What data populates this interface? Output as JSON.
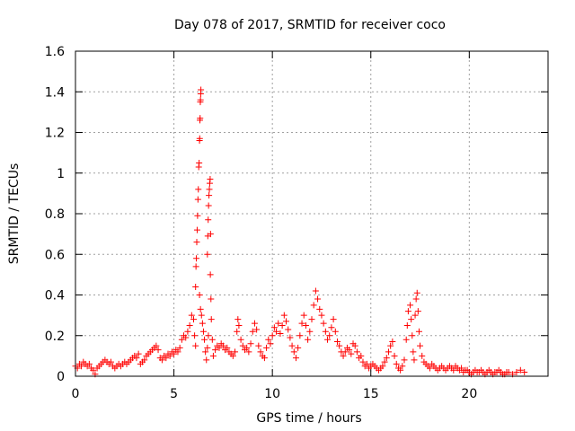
{
  "chart_data": {
    "type": "scatter",
    "title": "Day 078 of 2017, SRMTID for receiver coco",
    "xlabel": "GPS time / hours",
    "ylabel": "SRMTID / TECUs",
    "xlim": [
      0,
      24
    ],
    "ylim": [
      0,
      1.6
    ],
    "xticks": [
      0,
      5,
      10,
      15,
      20
    ],
    "yticks": [
      0,
      0.2,
      0.4,
      0.6,
      0.8,
      1,
      1.2,
      1.4,
      1.6
    ],
    "xtick_labels": [
      "0",
      "5",
      "10",
      "15",
      "20"
    ],
    "ytick_labels": [
      "0",
      "0.2",
      "0.4",
      "0.6",
      "0.8",
      "1",
      "1.2",
      "1.4",
      "1.6"
    ],
    "grid": true,
    "marker": "plus",
    "color": "#ff0000",
    "series": [
      {
        "name": "SRMTID",
        "points": [
          [
            0.0,
            0.05
          ],
          [
            0.1,
            0.04
          ],
          [
            0.2,
            0.06
          ],
          [
            0.3,
            0.05
          ],
          [
            0.4,
            0.07
          ],
          [
            0.5,
            0.06
          ],
          [
            0.6,
            0.05
          ],
          [
            0.7,
            0.06
          ],
          [
            0.8,
            0.04
          ],
          [
            0.9,
            0.03
          ],
          [
            1.0,
            0.01
          ],
          [
            1.1,
            0.04
          ],
          [
            1.2,
            0.05
          ],
          [
            1.3,
            0.06
          ],
          [
            1.4,
            0.07
          ],
          [
            1.5,
            0.08
          ],
          [
            1.6,
            0.07
          ],
          [
            1.7,
            0.06
          ],
          [
            1.8,
            0.07
          ],
          [
            1.9,
            0.05
          ],
          [
            2.0,
            0.04
          ],
          [
            2.1,
            0.05
          ],
          [
            2.2,
            0.06
          ],
          [
            2.3,
            0.05
          ],
          [
            2.4,
            0.06
          ],
          [
            2.5,
            0.07
          ],
          [
            2.6,
            0.06
          ],
          [
            2.7,
            0.07
          ],
          [
            2.8,
            0.08
          ],
          [
            2.9,
            0.09
          ],
          [
            3.0,
            0.1
          ],
          [
            3.1,
            0.09
          ],
          [
            3.2,
            0.11
          ],
          [
            3.3,
            0.06
          ],
          [
            3.4,
            0.07
          ],
          [
            3.5,
            0.08
          ],
          [
            3.6,
            0.1
          ],
          [
            3.7,
            0.11
          ],
          [
            3.8,
            0.12
          ],
          [
            3.9,
            0.13
          ],
          [
            4.0,
            0.14
          ],
          [
            4.1,
            0.15
          ],
          [
            4.2,
            0.13
          ],
          [
            4.3,
            0.09
          ],
          [
            4.4,
            0.08
          ],
          [
            4.5,
            0.1
          ],
          [
            4.6,
            0.09
          ],
          [
            4.7,
            0.11
          ],
          [
            4.8,
            0.1
          ],
          [
            4.9,
            0.12
          ],
          [
            5.0,
            0.11
          ],
          [
            5.1,
            0.13
          ],
          [
            5.2,
            0.12
          ],
          [
            5.3,
            0.14
          ],
          [
            5.4,
            0.18
          ],
          [
            5.5,
            0.2
          ],
          [
            5.6,
            0.19
          ],
          [
            5.7,
            0.22
          ],
          [
            5.8,
            0.25
          ],
          [
            5.9,
            0.3
          ],
          [
            6.0,
            0.28
          ],
          [
            6.05,
            0.2
          ],
          [
            6.1,
            0.15
          ],
          [
            6.1,
            0.44
          ],
          [
            6.12,
            0.54
          ],
          [
            6.14,
            0.58
          ],
          [
            6.16,
            0.66
          ],
          [
            6.18,
            0.72
          ],
          [
            6.2,
            0.79
          ],
          [
            6.22,
            0.87
          ],
          [
            6.24,
            0.92
          ],
          [
            6.26,
            1.03
          ],
          [
            6.28,
            1.05
          ],
          [
            6.3,
            1.16
          ],
          [
            6.31,
            1.17
          ],
          [
            6.32,
            1.26
          ],
          [
            6.33,
            1.27
          ],
          [
            6.34,
            1.35
          ],
          [
            6.35,
            1.36
          ],
          [
            6.36,
            1.39
          ],
          [
            6.37,
            1.41
          ],
          [
            6.3,
            0.4
          ],
          [
            6.35,
            0.33
          ],
          [
            6.4,
            0.3
          ],
          [
            6.45,
            0.26
          ],
          [
            6.5,
            0.22
          ],
          [
            6.55,
            0.18
          ],
          [
            6.6,
            0.12
          ],
          [
            6.65,
            0.08
          ],
          [
            6.7,
            0.14
          ],
          [
            6.75,
            0.2
          ],
          [
            6.7,
            0.6
          ],
          [
            6.72,
            0.69
          ],
          [
            6.74,
            0.77
          ],
          [
            6.76,
            0.84
          ],
          [
            6.78,
            0.89
          ],
          [
            6.8,
            0.92
          ],
          [
            6.82,
            0.95
          ],
          [
            6.84,
            0.97
          ],
          [
            6.86,
            0.7
          ],
          [
            6.85,
            0.5
          ],
          [
            6.88,
            0.38
          ],
          [
            6.9,
            0.28
          ],
          [
            6.95,
            0.18
          ],
          [
            7.0,
            0.1
          ],
          [
            7.1,
            0.13
          ],
          [
            7.2,
            0.15
          ],
          [
            7.3,
            0.14
          ],
          [
            7.4,
            0.16
          ],
          [
            7.5,
            0.15
          ],
          [
            7.6,
            0.13
          ],
          [
            7.7,
            0.14
          ],
          [
            7.8,
            0.12
          ],
          [
            7.9,
            0.11
          ],
          [
            8.0,
            0.1
          ],
          [
            8.1,
            0.12
          ],
          [
            8.2,
            0.22
          ],
          [
            8.25,
            0.28
          ],
          [
            8.3,
            0.25
          ],
          [
            8.4,
            0.18
          ],
          [
            8.5,
            0.15
          ],
          [
            8.6,
            0.13
          ],
          [
            8.7,
            0.14
          ],
          [
            8.8,
            0.12
          ],
          [
            8.9,
            0.16
          ],
          [
            9.0,
            0.22
          ],
          [
            9.1,
            0.26
          ],
          [
            9.2,
            0.23
          ],
          [
            9.3,
            0.15
          ],
          [
            9.4,
            0.12
          ],
          [
            9.5,
            0.1
          ],
          [
            9.6,
            0.09
          ],
          [
            9.7,
            0.14
          ],
          [
            9.8,
            0.18
          ],
          [
            9.9,
            0.16
          ],
          [
            10.0,
            0.2
          ],
          [
            10.1,
            0.24
          ],
          [
            10.2,
            0.22
          ],
          [
            10.3,
            0.26
          ],
          [
            10.4,
            0.21
          ],
          [
            10.5,
            0.25
          ],
          [
            10.6,
            0.3
          ],
          [
            10.7,
            0.27
          ],
          [
            10.8,
            0.23
          ],
          [
            10.9,
            0.19
          ],
          [
            11.0,
            0.15
          ],
          [
            11.1,
            0.12
          ],
          [
            11.2,
            0.09
          ],
          [
            11.3,
            0.14
          ],
          [
            11.4,
            0.2
          ],
          [
            11.5,
            0.26
          ],
          [
            11.6,
            0.3
          ],
          [
            11.7,
            0.25
          ],
          [
            11.8,
            0.18
          ],
          [
            11.9,
            0.22
          ],
          [
            12.0,
            0.28
          ],
          [
            12.1,
            0.35
          ],
          [
            12.2,
            0.42
          ],
          [
            12.3,
            0.38
          ],
          [
            12.4,
            0.33
          ],
          [
            12.5,
            0.3
          ],
          [
            12.6,
            0.26
          ],
          [
            12.7,
            0.22
          ],
          [
            12.8,
            0.18
          ],
          [
            12.9,
            0.2
          ],
          [
            13.0,
            0.24
          ],
          [
            13.1,
            0.28
          ],
          [
            13.2,
            0.22
          ],
          [
            13.3,
            0.17
          ],
          [
            13.4,
            0.15
          ],
          [
            13.5,
            0.12
          ],
          [
            13.6,
            0.1
          ],
          [
            13.7,
            0.12
          ],
          [
            13.8,
            0.14
          ],
          [
            13.9,
            0.13
          ],
          [
            14.0,
            0.11
          ],
          [
            14.1,
            0.16
          ],
          [
            14.2,
            0.15
          ],
          [
            14.3,
            0.12
          ],
          [
            14.4,
            0.09
          ],
          [
            14.5,
            0.1
          ],
          [
            14.6,
            0.07
          ],
          [
            14.7,
            0.05
          ],
          [
            14.8,
            0.06
          ],
          [
            14.9,
            0.04
          ],
          [
            15.0,
            0.05
          ],
          [
            15.1,
            0.06
          ],
          [
            15.2,
            0.05
          ],
          [
            15.3,
            0.04
          ],
          [
            15.4,
            0.03
          ],
          [
            15.5,
            0.04
          ],
          [
            15.6,
            0.05
          ],
          [
            15.7,
            0.07
          ],
          [
            15.8,
            0.09
          ],
          [
            15.9,
            0.12
          ],
          [
            16.0,
            0.15
          ],
          [
            16.1,
            0.17
          ],
          [
            16.2,
            0.1
          ],
          [
            16.3,
            0.06
          ],
          [
            16.4,
            0.04
          ],
          [
            16.5,
            0.03
          ],
          [
            16.6,
            0.05
          ],
          [
            16.7,
            0.08
          ],
          [
            16.8,
            0.18
          ],
          [
            16.85,
            0.25
          ],
          [
            16.9,
            0.32
          ],
          [
            17.0,
            0.35
          ],
          [
            17.05,
            0.28
          ],
          [
            17.1,
            0.2
          ],
          [
            17.15,
            0.12
          ],
          [
            17.2,
            0.08
          ],
          [
            17.25,
            0.3
          ],
          [
            17.3,
            0.38
          ],
          [
            17.35,
            0.41
          ],
          [
            17.4,
            0.32
          ],
          [
            17.45,
            0.22
          ],
          [
            17.5,
            0.15
          ],
          [
            17.6,
            0.1
          ],
          [
            17.7,
            0.07
          ],
          [
            17.8,
            0.06
          ],
          [
            17.9,
            0.05
          ],
          [
            18.0,
            0.04
          ],
          [
            18.1,
            0.06
          ],
          [
            18.2,
            0.05
          ],
          [
            18.3,
            0.04
          ],
          [
            18.4,
            0.03
          ],
          [
            18.5,
            0.04
          ],
          [
            18.6,
            0.05
          ],
          [
            18.7,
            0.04
          ],
          [
            18.8,
            0.03
          ],
          [
            18.9,
            0.04
          ],
          [
            19.0,
            0.05
          ],
          [
            19.1,
            0.04
          ],
          [
            19.2,
            0.03
          ],
          [
            19.3,
            0.05
          ],
          [
            19.4,
            0.04
          ],
          [
            19.5,
            0.03
          ],
          [
            19.6,
            0.04
          ],
          [
            19.7,
            0.02
          ],
          [
            19.8,
            0.03
          ],
          [
            19.9,
            0.03
          ],
          [
            20.0,
            0.02
          ],
          [
            20.1,
            0.01
          ],
          [
            20.2,
            0.02
          ],
          [
            20.3,
            0.03
          ],
          [
            20.4,
            0.02
          ],
          [
            20.5,
            0.02
          ],
          [
            20.6,
            0.03
          ],
          [
            20.7,
            0.02
          ],
          [
            20.8,
            0.01
          ],
          [
            20.9,
            0.02
          ],
          [
            21.0,
            0.03
          ],
          [
            21.1,
            0.02
          ],
          [
            21.2,
            0.01
          ],
          [
            21.3,
            0.02
          ],
          [
            21.4,
            0.02
          ],
          [
            21.5,
            0.03
          ],
          [
            21.6,
            0.02
          ],
          [
            21.7,
            0.01
          ],
          [
            21.8,
            0.01
          ],
          [
            21.9,
            0.02
          ],
          [
            22.0,
            0.02
          ],
          [
            22.2,
            0.01
          ],
          [
            22.4,
            0.02
          ],
          [
            22.6,
            0.03
          ],
          [
            22.8,
            0.02
          ]
        ]
      }
    ]
  }
}
